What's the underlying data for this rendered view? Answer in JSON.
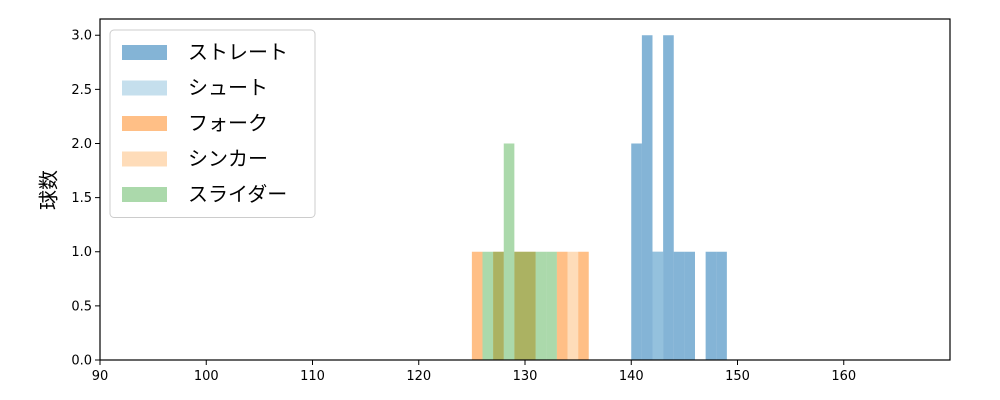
{
  "chart_data": {
    "type": "bar",
    "title": "",
    "xlabel": "",
    "ylabel": "球数",
    "xlim": [
      90,
      170
    ],
    "ylim": [
      0,
      3.15
    ],
    "xticks": [
      90,
      100,
      110,
      120,
      130,
      140,
      150,
      160
    ],
    "yticks": [
      0.0,
      0.5,
      1.0,
      1.5,
      2.0,
      2.5,
      3.0
    ],
    "xtick_labels": [
      "90",
      "100",
      "110",
      "120",
      "130",
      "140",
      "150",
      "160"
    ],
    "ytick_labels": [
      "0.0",
      "0.5",
      "1.0",
      "1.5",
      "2.0",
      "2.5",
      "3.0"
    ],
    "grid": false,
    "legend_position": "top-left",
    "series": [
      {
        "name": "ストレート",
        "color": "#1f77b4",
        "alpha": 0.55,
        "bins": [
          {
            "x0": 140.0,
            "x1": 141.0,
            "count": 2
          },
          {
            "x0": 141.0,
            "x1": 142.0,
            "count": 3
          },
          {
            "x0": 142.0,
            "x1": 143.0,
            "count": 1
          },
          {
            "x0": 143.0,
            "x1": 144.0,
            "count": 3
          },
          {
            "x0": 144.0,
            "x1": 145.0,
            "count": 1
          },
          {
            "x0": 145.0,
            "x1": 146.0,
            "count": 1
          },
          {
            "x0": 147.0,
            "x1": 148.0,
            "count": 1
          },
          {
            "x0": 148.0,
            "x1": 149.0,
            "count": 1
          }
        ]
      },
      {
        "name": "シュート",
        "color": "#9ecae1",
        "alpha": 0.6,
        "bins": [
          {
            "x0": 142.0,
            "x1": 143.0,
            "count": 1
          }
        ]
      },
      {
        "name": "フォーク",
        "color": "#ff7f0e",
        "alpha": 0.5,
        "bins": [
          {
            "x0": 125.0,
            "x1": 126.0,
            "count": 1
          },
          {
            "x0": 127.0,
            "x1": 128.0,
            "count": 1
          },
          {
            "x0": 129.0,
            "x1": 130.0,
            "count": 1
          },
          {
            "x0": 130.0,
            "x1": 131.0,
            "count": 1
          },
          {
            "x0": 133.0,
            "x1": 134.0,
            "count": 1
          },
          {
            "x0": 135.0,
            "x1": 136.0,
            "count": 1
          }
        ]
      },
      {
        "name": "シンカー",
        "color": "#fdd0a2",
        "alpha": 0.75,
        "bins": [
          {
            "x0": 134.0,
            "x1": 135.0,
            "count": 1
          }
        ]
      },
      {
        "name": "スライダー",
        "color": "#2ca02c",
        "alpha": 0.4,
        "bins": [
          {
            "x0": 126.0,
            "x1": 127.0,
            "count": 1
          },
          {
            "x0": 127.0,
            "x1": 128.0,
            "count": 1
          },
          {
            "x0": 128.0,
            "x1": 129.0,
            "count": 2
          },
          {
            "x0": 129.0,
            "x1": 130.0,
            "count": 1
          },
          {
            "x0": 130.0,
            "x1": 131.0,
            "count": 1
          },
          {
            "x0": 131.0,
            "x1": 132.0,
            "count": 1
          },
          {
            "x0": 132.0,
            "x1": 133.0,
            "count": 1
          }
        ]
      }
    ]
  }
}
